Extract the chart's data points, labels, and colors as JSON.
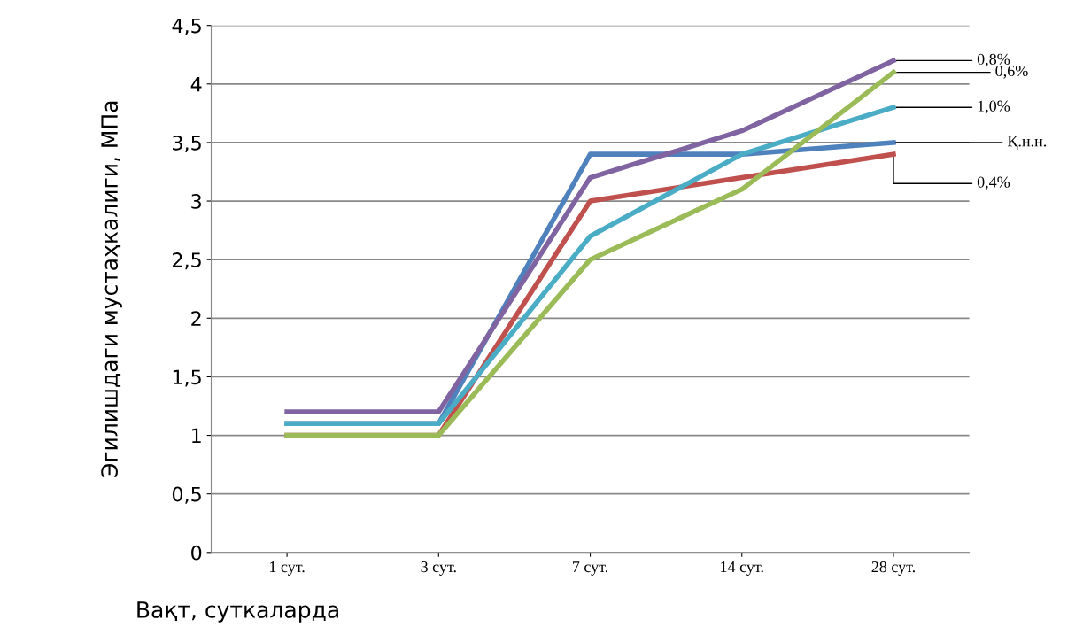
{
  "chart_data": {
    "type": "line",
    "xlabel": "Вақт, суткаларда",
    "ylabel": "Эгилишдаги мустаҳкалиги, МПа",
    "categories": [
      "1 сут.",
      "3 сут.",
      "7 сут.",
      "14 сут.",
      "28 сут."
    ],
    "series": [
      {
        "name": "Қ.н.н.",
        "color": "#4f81bd",
        "values": [
          1.1,
          1.1,
          3.4,
          3.4,
          3.5
        ]
      },
      {
        "name": "0,4%",
        "color": "#c0504d",
        "values": [
          1.0,
          1.0,
          3.0,
          3.2,
          3.4
        ]
      },
      {
        "name": "1,0%",
        "color": "#4bacc6",
        "values": [
          1.1,
          1.1,
          2.7,
          3.4,
          3.8
        ]
      },
      {
        "name": "0,6%",
        "color": "#9bbb59",
        "values": [
          1.0,
          1.0,
          2.5,
          3.1,
          4.1
        ]
      },
      {
        "name": "0,8%",
        "color": "#8064a2",
        "values": [
          1.2,
          1.2,
          3.2,
          3.6,
          4.2
        ]
      }
    ],
    "ylim": [
      0,
      4.5
    ],
    "yticks": [
      0,
      {
        "value": 0.5,
        "label": "0,5"
      },
      1,
      {
        "value": 1.5,
        "label": "1,5"
      },
      2,
      {
        "value": 2.5,
        "label": "2,5"
      },
      3,
      {
        "value": 3.5,
        "label": "3,5"
      },
      4,
      {
        "value": 4.5,
        "label": "4,5"
      }
    ],
    "grid": "y",
    "legend": false,
    "marker": "none",
    "line_style": "solid"
  }
}
